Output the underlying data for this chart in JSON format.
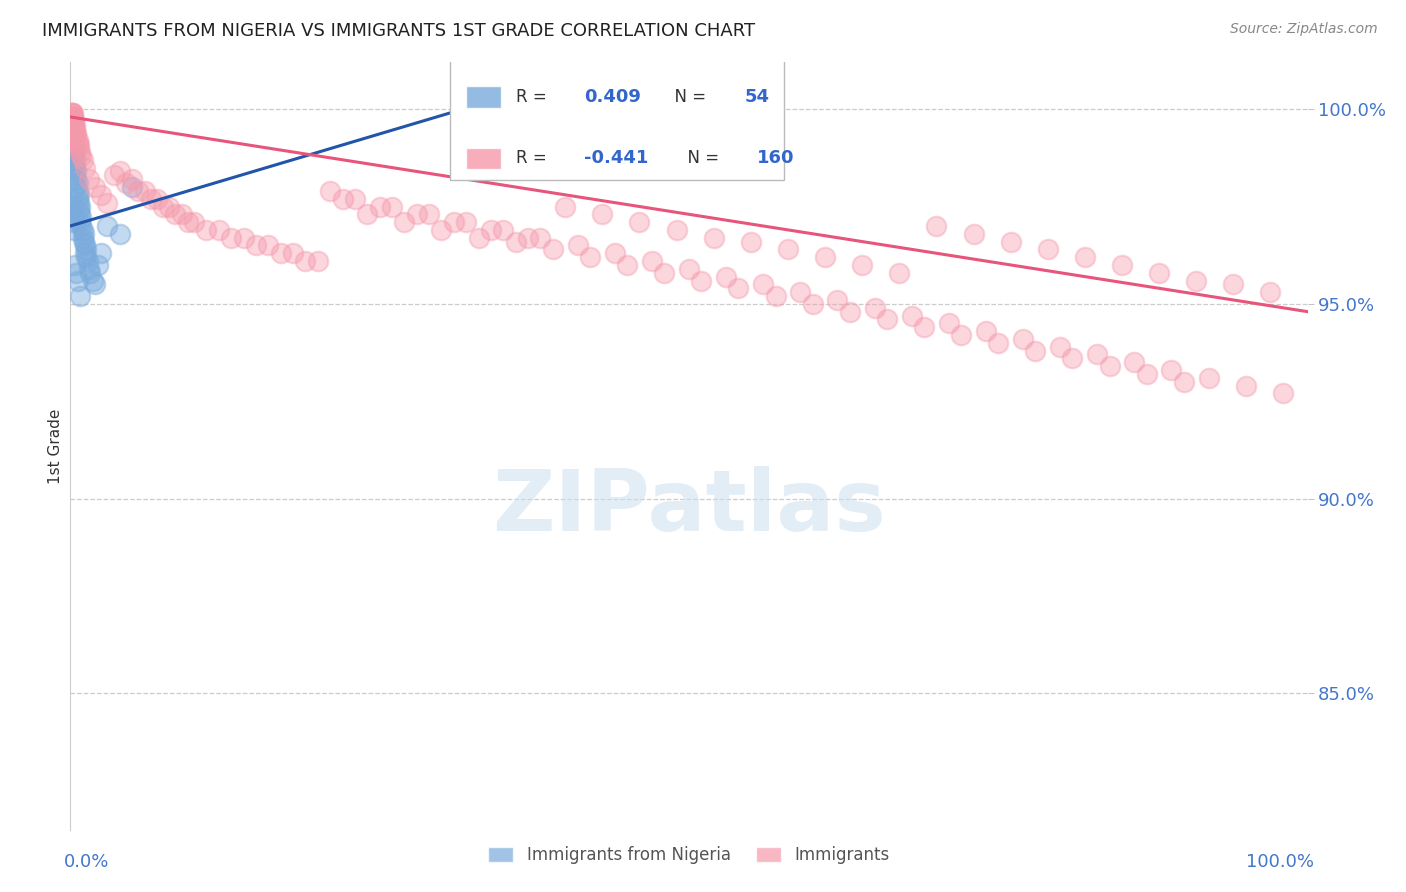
{
  "title": "IMMIGRANTS FROM NIGERIA VS IMMIGRANTS 1ST GRADE CORRELATION CHART",
  "source": "Source: ZipAtlas.com",
  "ylabel": "1st Grade",
  "blue_color": "#7aabdc",
  "pink_color": "#f599aa",
  "blue_line_color": "#2255aa",
  "pink_line_color": "#e8557a",
  "ytick_values": [
    1.0,
    0.95,
    0.9,
    0.85
  ],
  "xlim": [
    0.0,
    1.0
  ],
  "ylim": [
    0.815,
    1.012
  ],
  "blue_trend_x": [
    0.0,
    0.37
  ],
  "blue_trend_y": [
    0.97,
    1.005
  ],
  "pink_trend_x": [
    0.0,
    1.0
  ],
  "pink_trend_y": [
    0.998,
    0.948
  ],
  "blue_scatter_x": [
    0.001,
    0.001,
    0.001,
    0.002,
    0.002,
    0.002,
    0.002,
    0.003,
    0.003,
    0.003,
    0.003,
    0.004,
    0.004,
    0.004,
    0.005,
    0.005,
    0.005,
    0.006,
    0.006,
    0.006,
    0.007,
    0.007,
    0.007,
    0.008,
    0.008,
    0.008,
    0.009,
    0.009,
    0.01,
    0.01,
    0.011,
    0.011,
    0.012,
    0.012,
    0.013,
    0.013,
    0.014,
    0.015,
    0.016,
    0.018,
    0.02,
    0.022,
    0.025,
    0.03,
    0.04,
    0.05,
    0.001,
    0.002,
    0.002,
    0.003,
    0.004,
    0.005,
    0.006,
    0.008
  ],
  "blue_scatter_y": [
    0.997,
    0.996,
    0.994,
    0.995,
    0.993,
    0.991,
    0.99,
    0.992,
    0.989,
    0.988,
    0.986,
    0.987,
    0.985,
    0.983,
    0.984,
    0.982,
    0.98,
    0.981,
    0.979,
    0.977,
    0.978,
    0.976,
    0.974,
    0.975,
    0.973,
    0.971,
    0.972,
    0.97,
    0.969,
    0.967,
    0.968,
    0.966,
    0.965,
    0.963,
    0.964,
    0.962,
    0.961,
    0.959,
    0.958,
    0.956,
    0.955,
    0.96,
    0.963,
    0.97,
    0.968,
    0.98,
    0.975,
    0.973,
    0.971,
    0.969,
    0.96,
    0.958,
    0.956,
    0.952
  ],
  "pink_scatter_x": [
    0.001,
    0.001,
    0.001,
    0.001,
    0.001,
    0.001,
    0.001,
    0.001,
    0.001,
    0.001,
    0.001,
    0.001,
    0.001,
    0.001,
    0.001,
    0.001,
    0.001,
    0.001,
    0.002,
    0.002,
    0.002,
    0.002,
    0.002,
    0.002,
    0.002,
    0.002,
    0.002,
    0.002,
    0.003,
    0.003,
    0.003,
    0.003,
    0.004,
    0.004,
    0.004,
    0.004,
    0.005,
    0.005,
    0.006,
    0.006,
    0.007,
    0.007,
    0.008,
    0.009,
    0.01,
    0.012,
    0.015,
    0.02,
    0.025,
    0.03,
    0.04,
    0.05,
    0.06,
    0.07,
    0.08,
    0.09,
    0.1,
    0.12,
    0.14,
    0.16,
    0.18,
    0.2,
    0.22,
    0.25,
    0.28,
    0.31,
    0.34,
    0.37,
    0.4,
    0.43,
    0.46,
    0.49,
    0.52,
    0.55,
    0.58,
    0.61,
    0.64,
    0.67,
    0.7,
    0.73,
    0.76,
    0.79,
    0.82,
    0.85,
    0.88,
    0.91,
    0.94,
    0.97,
    0.035,
    0.045,
    0.055,
    0.065,
    0.075,
    0.085,
    0.095,
    0.11,
    0.13,
    0.15,
    0.17,
    0.19,
    0.21,
    0.23,
    0.26,
    0.29,
    0.32,
    0.35,
    0.38,
    0.41,
    0.44,
    0.47,
    0.5,
    0.53,
    0.56,
    0.59,
    0.62,
    0.65,
    0.68,
    0.71,
    0.74,
    0.77,
    0.8,
    0.83,
    0.86,
    0.89,
    0.92,
    0.95,
    0.98,
    0.24,
    0.27,
    0.3,
    0.33,
    0.36,
    0.39,
    0.42,
    0.45,
    0.48,
    0.51,
    0.54,
    0.57,
    0.6,
    0.63,
    0.66,
    0.69,
    0.72,
    0.75,
    0.78,
    0.81,
    0.84,
    0.87,
    0.9
  ],
  "pink_scatter_y": [
    0.999,
    0.999,
    0.999,
    0.998,
    0.998,
    0.998,
    0.997,
    0.997,
    0.997,
    0.996,
    0.996,
    0.995,
    0.995,
    0.994,
    0.994,
    0.993,
    0.993,
    0.992,
    0.999,
    0.998,
    0.998,
    0.997,
    0.997,
    0.996,
    0.995,
    0.994,
    0.993,
    0.992,
    0.997,
    0.996,
    0.995,
    0.994,
    0.996,
    0.995,
    0.994,
    0.993,
    0.994,
    0.993,
    0.992,
    0.991,
    0.991,
    0.99,
    0.989,
    0.988,
    0.987,
    0.985,
    0.982,
    0.98,
    0.978,
    0.976,
    0.984,
    0.982,
    0.979,
    0.977,
    0.975,
    0.973,
    0.971,
    0.969,
    0.967,
    0.965,
    0.963,
    0.961,
    0.977,
    0.975,
    0.973,
    0.971,
    0.969,
    0.967,
    0.975,
    0.973,
    0.971,
    0.969,
    0.967,
    0.966,
    0.964,
    0.962,
    0.96,
    0.958,
    0.97,
    0.968,
    0.966,
    0.964,
    0.962,
    0.96,
    0.958,
    0.956,
    0.955,
    0.953,
    0.983,
    0.981,
    0.979,
    0.977,
    0.975,
    0.973,
    0.971,
    0.969,
    0.967,
    0.965,
    0.963,
    0.961,
    0.979,
    0.977,
    0.975,
    0.973,
    0.971,
    0.969,
    0.967,
    0.965,
    0.963,
    0.961,
    0.959,
    0.957,
    0.955,
    0.953,
    0.951,
    0.949,
    0.947,
    0.945,
    0.943,
    0.941,
    0.939,
    0.937,
    0.935,
    0.933,
    0.931,
    0.929,
    0.927,
    0.973,
    0.971,
    0.969,
    0.967,
    0.966,
    0.964,
    0.962,
    0.96,
    0.958,
    0.956,
    0.954,
    0.952,
    0.95,
    0.948,
    0.946,
    0.944,
    0.942,
    0.94,
    0.938,
    0.936,
    0.934,
    0.932,
    0.93
  ]
}
